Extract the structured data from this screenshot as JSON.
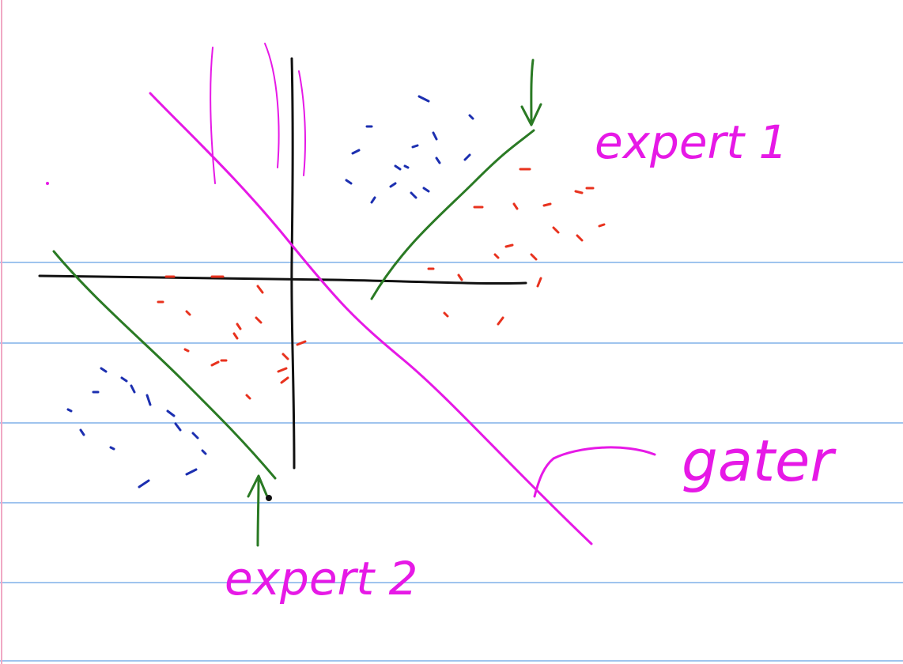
{
  "labels": {
    "expert1": "expert 1",
    "expert2": "expert 2",
    "gater": "gater"
  },
  "colors": {
    "paper": "#ffffff",
    "rule_line": "#9fc4ee",
    "margin_line": "#f0a8c4",
    "axes": "#111111",
    "expert_line": "#2a7a24",
    "gater_line": "#e619e6",
    "class_red": "#e8321e",
    "class_blue": "#1c2fb0"
  },
  "legend": [
    {
      "name": "class_red",
      "meaning": "red dash points"
    },
    {
      "name": "class_blue",
      "meaning": "blue dash points"
    }
  ]
}
